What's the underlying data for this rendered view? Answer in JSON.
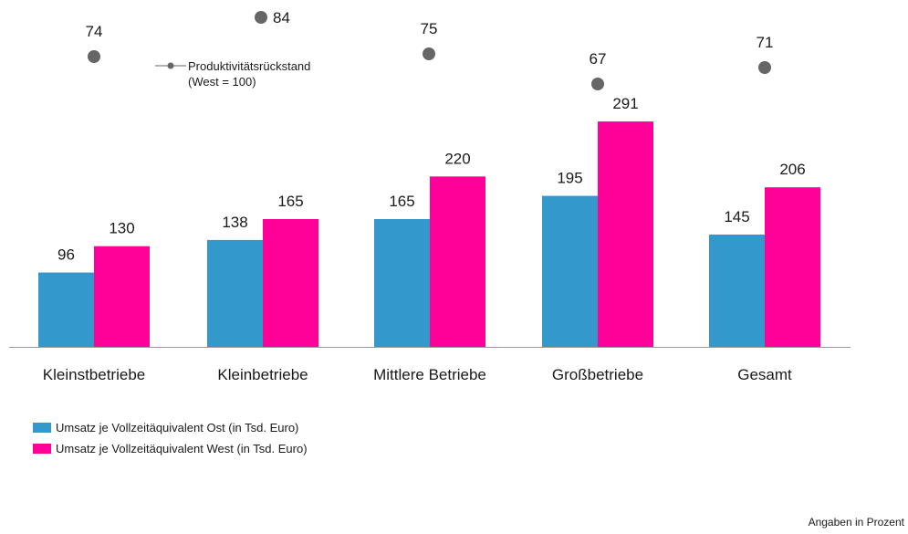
{
  "chart_data": {
    "type": "bar",
    "categories": [
      "Kleinstbetriebe",
      "Kleinbetriebe",
      "Mittlere Betriebe",
      "Großbetriebe",
      "Gesamt"
    ],
    "series": [
      {
        "name": "Umsatz je Vollzeitäquivalent Ost (in Tsd. Euro)",
        "values": [
          96,
          138,
          165,
          195,
          145
        ],
        "color": "#3399cc"
      },
      {
        "name": "Umsatz je Vollzeitäquivalent West (in Tsd. Euro)",
        "values": [
          130,
          165,
          220,
          291,
          206
        ],
        "color": "#ff0099"
      }
    ],
    "productivity": {
      "name_line1": "Produktivitätsrückstand",
      "name_line2": "(West = 100)",
      "values": [
        74,
        84,
        75,
        67,
        71
      ],
      "color": "#666666"
    },
    "ylim": [
      0,
      300
    ],
    "xlabel": "",
    "ylabel": "",
    "title": "",
    "grid": false,
    "axis_color": "#999999"
  },
  "footnote": "Angaben in Prozent"
}
